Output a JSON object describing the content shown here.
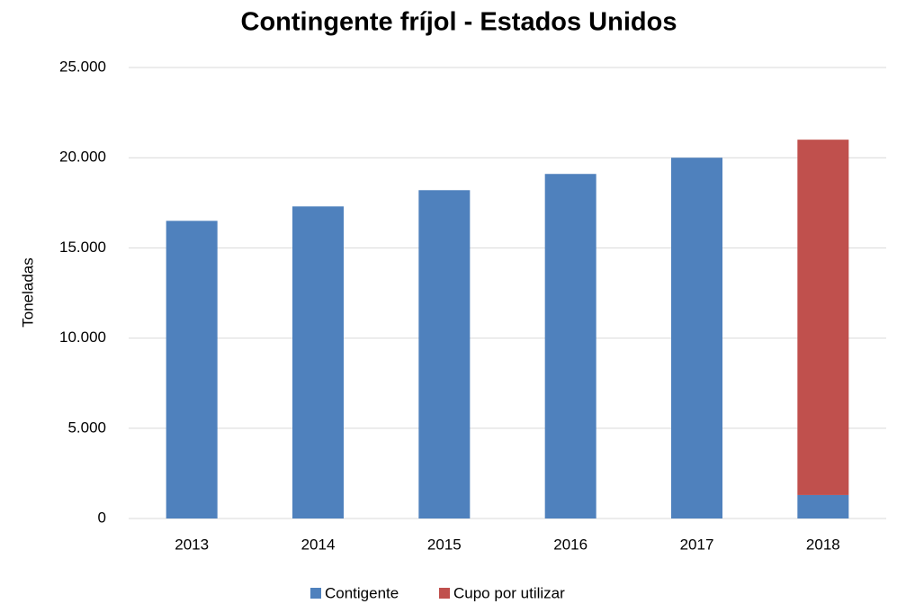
{
  "chart_data": {
    "type": "stacked_bar",
    "title": "Contingente fríjol - Estados Unidos",
    "y_label": "Toneladas",
    "categories": [
      "2013",
      "2014",
      "2015",
      "2016",
      "2017",
      "2018"
    ],
    "series": [
      {
        "name": "Contigente",
        "color": "#4f81bd",
        "values": [
          16500,
          17300,
          18200,
          19100,
          20000,
          1300
        ]
      },
      {
        "name": "Cupo por utilizar",
        "color": "#c0504d",
        "values": [
          null,
          null,
          null,
          null,
          null,
          19700
        ]
      }
    ],
    "ylim": [
      0,
      25000
    ],
    "yticks": [
      0,
      {
        "value": 5000,
        "label": "5.000"
      },
      {
        "value": 10000,
        "label": "10.000"
      },
      {
        "value": 15000,
        "label": "15.000"
      },
      {
        "value": 20000,
        "label": "20.000"
      },
      {
        "value": 25000,
        "label": "25.000"
      }
    ],
    "grid": true,
    "legend": "bottom"
  }
}
